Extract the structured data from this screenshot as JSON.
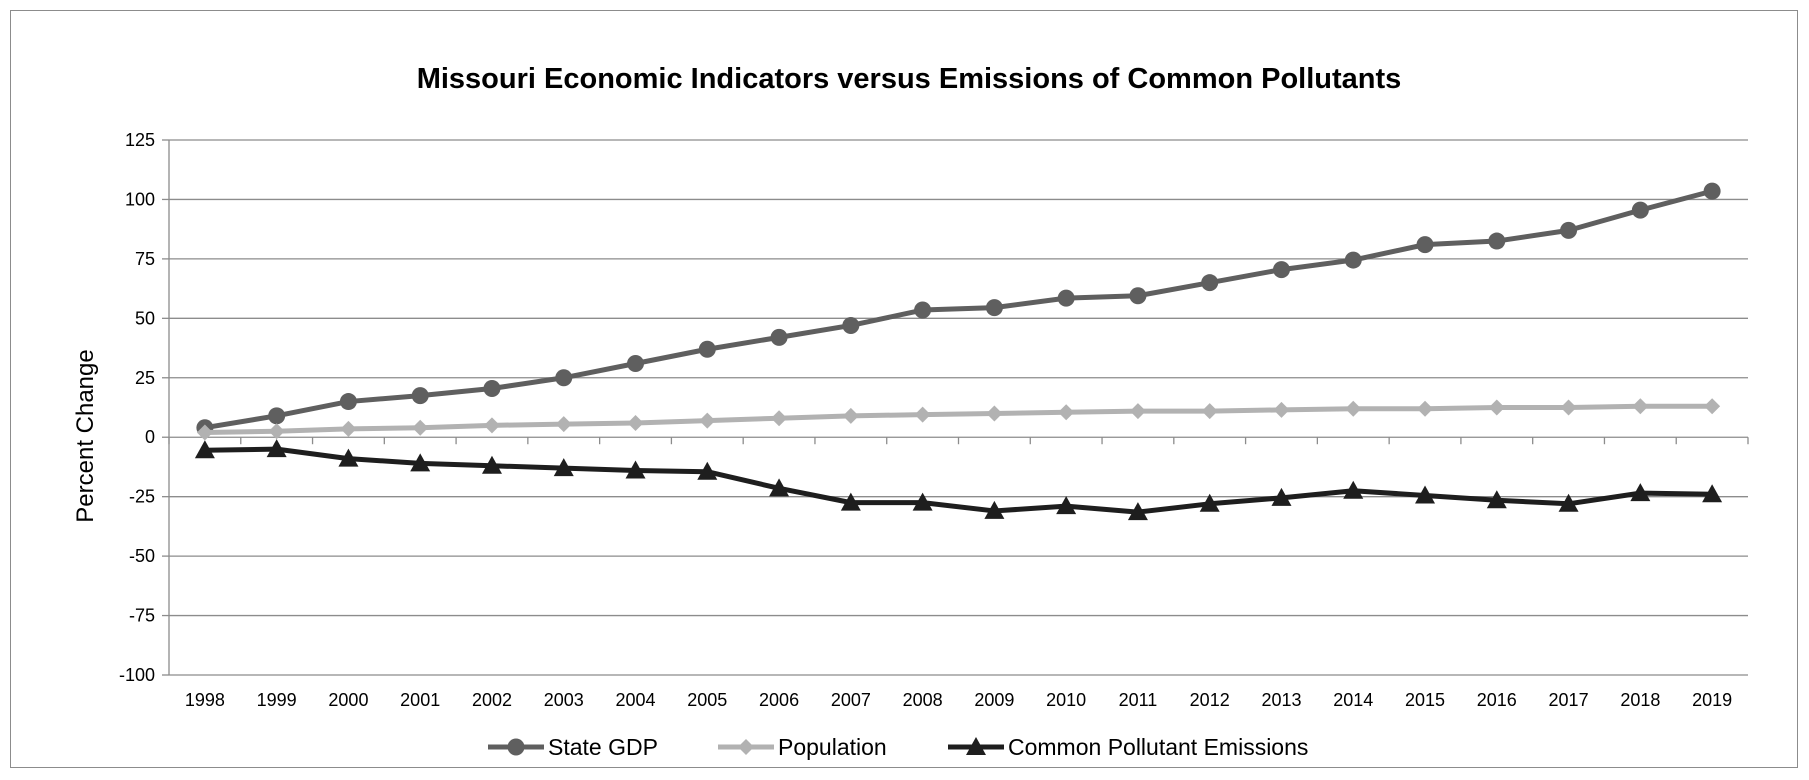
{
  "chart_data": {
    "type": "line",
    "title": "Missouri Economic Indicators versus Emissions of Common Pollutants",
    "xlabel": "",
    "ylabel": "Percent Change",
    "ylim": [
      -100,
      125
    ],
    "yticks": [
      "125",
      "100",
      "75",
      "50",
      "25",
      "0",
      "-25",
      "-50",
      "-75",
      "-100"
    ],
    "grid": "horizontal",
    "legend_position": "bottom",
    "categories": [
      "1998",
      "1999",
      "2000",
      "2001",
      "2002",
      "2003",
      "2004",
      "2005",
      "2006",
      "2007",
      "2008",
      "2009",
      "2010",
      "2011",
      "2012",
      "2013",
      "2014",
      "2015",
      "2016",
      "2017",
      "2018",
      "2019"
    ],
    "series": [
      {
        "name": "State GDP",
        "marker": "circle",
        "color": "#5f5f5f",
        "values": [
          4,
          9,
          15,
          17.5,
          20.5,
          25,
          31,
          37,
          42,
          47,
          53.5,
          54.5,
          58.5,
          59.5,
          65,
          70.5,
          74.5,
          81,
          82.5,
          87,
          95.5,
          103.5
        ]
      },
      {
        "name": "Population",
        "marker": "diamond",
        "color": "#b2b2b2",
        "values": [
          2,
          2.5,
          3.5,
          4,
          5,
          5.5,
          6,
          7,
          8,
          9,
          9.5,
          10,
          10.5,
          11,
          11,
          11.5,
          12,
          12,
          12.5,
          12.5,
          13,
          13
        ]
      },
      {
        "name": "Common Pollutant Emissions",
        "marker": "triangle",
        "color": "#1e1e1e",
        "values": [
          -5.5,
          -5,
          -9,
          -11,
          -12,
          -13,
          -14,
          -14.5,
          -21.5,
          -27.5,
          -27.5,
          -31,
          -29,
          -31.5,
          -28,
          -25.5,
          -22.5,
          -24.5,
          -26.5,
          -28,
          -23.5,
          -24
        ]
      }
    ]
  }
}
